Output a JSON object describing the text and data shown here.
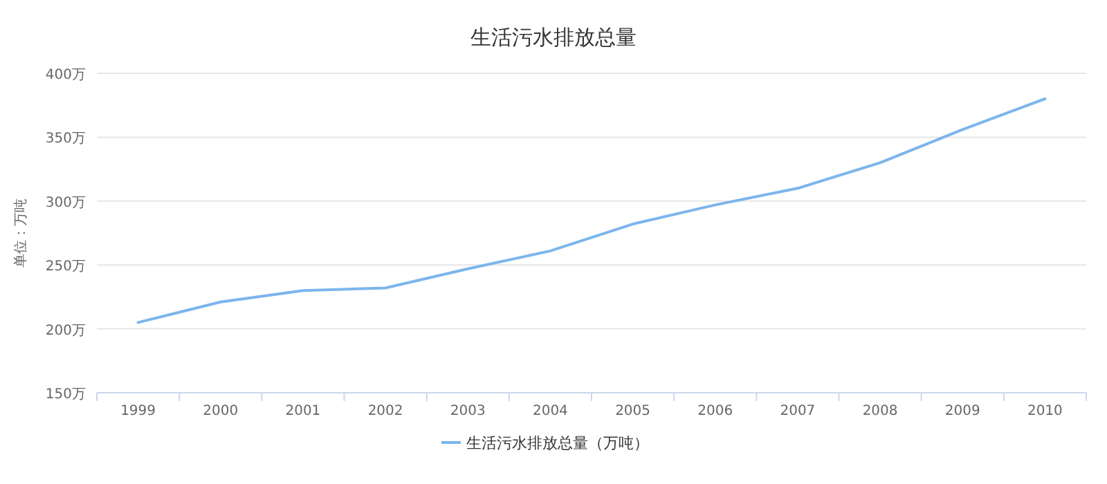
{
  "chart_data": {
    "type": "line",
    "title": "生活污水排放总量",
    "ylabel": "单位：万吨",
    "categories": [
      "1999",
      "2000",
      "2001",
      "2002",
      "2003",
      "2004",
      "2005",
      "2006",
      "2007",
      "2008",
      "2009",
      "2010"
    ],
    "series": [
      {
        "name": "生活污水排放总量（万吨）",
        "color": "#7cb5ec",
        "values": [
          205,
          221,
          230,
          232,
          247,
          261,
          282,
          297,
          310,
          330,
          356,
          380
        ]
      }
    ],
    "ylim": [
      150,
      400
    ],
    "yticks": [
      {
        "value": 150,
        "label": "150万"
      },
      {
        "value": 200,
        "label": "200万"
      },
      {
        "value": 250,
        "label": "250万"
      },
      {
        "value": 300,
        "label": "300万"
      },
      {
        "value": 350,
        "label": "350万"
      },
      {
        "value": 400,
        "label": "400万"
      }
    ],
    "grid": "y",
    "legend": "bottom",
    "marker": "none",
    "line_style": "solid"
  }
}
